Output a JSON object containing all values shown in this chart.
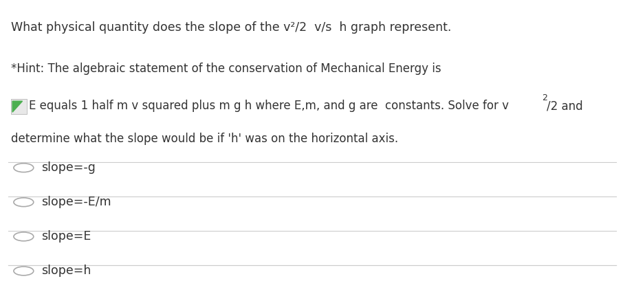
{
  "title_line": "What physical quantity does the slope of the v²/2  v/s  h graph represent.",
  "hint_line1": "*Hint: The algebraic statement of the conservation of Mechanical Energy is",
  "hint_line2_pre": "E equals 1 half m v squared plus m g h where E,m, and g are  constants. Solve for v",
  "hint_line2_sup": "2",
  "hint_line2_post": "/2 and",
  "hint_line3": "determine what the slope would be if 'h' was on the horizontal axis.",
  "options": [
    "slope=-g",
    "slope=-E/m",
    "slope=E",
    "slope=h"
  ],
  "bg_color": "#ffffff",
  "text_color": "#333333",
  "option_text_color": "#333333",
  "line_color": "#cccccc",
  "circle_color": "#aaaaaa",
  "font_size_title": 12.5,
  "font_size_hint": 12.0,
  "font_size_option": 12.5
}
